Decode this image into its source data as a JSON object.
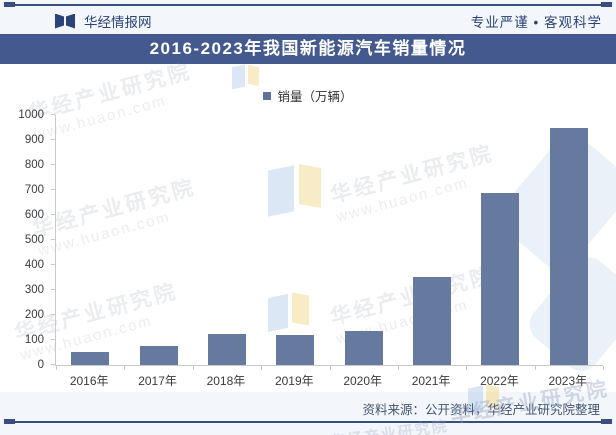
{
  "header": {
    "brand": "华经情报网",
    "slogan": "专业严谨 • 客观科学"
  },
  "title": "2016-2023年我国新能源汽车销量情况",
  "legend_label": "销量（万辆）",
  "footer": {
    "source": "资料来源：公开资料，华经产业研究院整理"
  },
  "watermark": {
    "name": "华经产业研究院",
    "url": "www.huaon.com"
  },
  "colors": {
    "bar": "#66799F",
    "title_bar": "#44598D",
    "accent_line": "#3A4E7E",
    "header_text": "#2C4377",
    "axis": "#C9C9C9"
  },
  "chart_data": {
    "type": "bar",
    "title": "2016-2023年我国新能源汽车销量情况",
    "categories": [
      "2016年",
      "2017年",
      "2018年",
      "2019年",
      "2020年",
      "2021年",
      "2022年",
      "2023年"
    ],
    "series": [
      {
        "name": "销量（万辆）",
        "values": [
          51,
          78,
          126,
          121,
          137,
          352,
          689,
          950
        ]
      }
    ],
    "xlabel": "",
    "ylabel": "",
    "ylim": [
      0,
      1000
    ],
    "ytick_interval": 100,
    "grid": false,
    "legend_position": "top-center",
    "bar_color": "#66799F"
  }
}
